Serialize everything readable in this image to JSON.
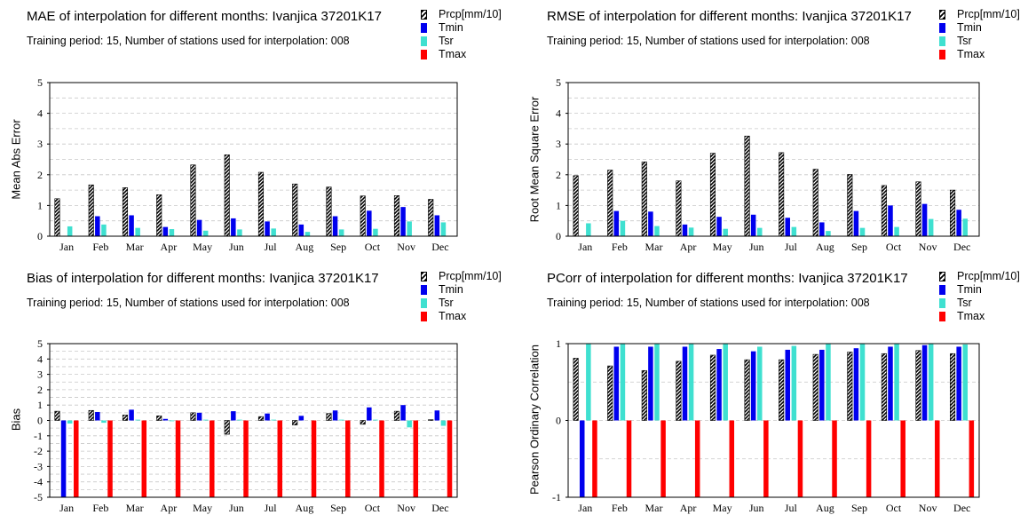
{
  "colors": {
    "Tmin": "#0000ee",
    "Tsr": "#3fe0d0",
    "Tmax": "#ff0000",
    "Prcp": "#000000"
  },
  "legend": [
    "Prcp[mm/10]",
    "Tmin",
    "Tsr",
    "Tmax"
  ],
  "panels": [
    {
      "title": "MAE of interpolation for different months: Ivanjica  37201K17",
      "subtitle": "Training period: 15, Number of stations used for interpolation: 008",
      "ylabel": "Mean Abs Error"
    },
    {
      "title": "RMSE of interpolation for different months: Ivanjica  37201K17",
      "subtitle": "Training period: 15, Number of stations used for interpolation: 008",
      "ylabel": "Root Mean Square Error"
    },
    {
      "title": "Bias of interpolation for different months: Ivanjica  37201K17",
      "subtitle": "Training period: 15, Number of stations used for interpolation: 008",
      "ylabel": "Bias"
    },
    {
      "title": "PCorr of interpolation for different months: Ivanjica  37201K17",
      "subtitle": "Training period: 15, Number of stations used for interpolation: 008",
      "ylabel": "Pearson Ordinary Correlation"
    }
  ],
  "chart_data": [
    {
      "type": "bar",
      "title": "MAE of interpolation for different months: Ivanjica  37201K17",
      "xlabel": "",
      "ylabel": "Mean Abs Error",
      "ylim": [
        0,
        5
      ],
      "grid": true,
      "legend_position": "top-right",
      "yticks": [
        0,
        1,
        2,
        3,
        4,
        5
      ],
      "categories": [
        "Jan",
        "Feb",
        "Mar",
        "Apr",
        "May",
        "Jun",
        "Jul",
        "Aug",
        "Sep",
        "Oct",
        "Nov",
        "Dec"
      ],
      "series": [
        {
          "name": "Prcp[mm/10]",
          "values": [
            1.22,
            1.67,
            1.58,
            1.35,
            2.32,
            2.65,
            2.08,
            1.7,
            1.6,
            1.31,
            1.32,
            1.2
          ]
        },
        {
          "name": "Tmin",
          "values": [
            0.0,
            0.65,
            0.68,
            0.3,
            0.53,
            0.58,
            0.48,
            0.38,
            0.65,
            0.83,
            0.95,
            0.68
          ]
        },
        {
          "name": "Tsr",
          "values": [
            0.32,
            0.38,
            0.27,
            0.23,
            0.18,
            0.22,
            0.25,
            0.14,
            0.22,
            0.24,
            0.48,
            0.45
          ]
        },
        {
          "name": "Tmax",
          "values": [
            0,
            0,
            0,
            0,
            0,
            0,
            0,
            0,
            0,
            0,
            0,
            0
          ]
        }
      ]
    },
    {
      "type": "bar",
      "title": "RMSE of interpolation for different months: Ivanjica  37201K17",
      "xlabel": "",
      "ylabel": "Root Mean Square Error",
      "ylim": [
        0,
        5
      ],
      "grid": true,
      "legend_position": "top-right",
      "yticks": [
        0,
        1,
        2,
        3,
        4,
        5
      ],
      "categories": [
        "Jan",
        "Feb",
        "Mar",
        "Apr",
        "May",
        "Jun",
        "Jul",
        "Aug",
        "Sep",
        "Oct",
        "Nov",
        "Dec"
      ],
      "series": [
        {
          "name": "Prcp[mm/10]",
          "values": [
            1.97,
            2.15,
            2.42,
            1.8,
            2.7,
            3.26,
            2.72,
            2.18,
            2.01,
            1.65,
            1.77,
            1.5
          ]
        },
        {
          "name": "Tmin",
          "values": [
            0.0,
            0.82,
            0.8,
            0.38,
            0.63,
            0.7,
            0.6,
            0.45,
            0.82,
            1.0,
            1.05,
            0.86
          ]
        },
        {
          "name": "Tsr",
          "values": [
            0.42,
            0.5,
            0.33,
            0.28,
            0.24,
            0.27,
            0.3,
            0.17,
            0.27,
            0.3,
            0.56,
            0.57
          ]
        },
        {
          "name": "Tmax",
          "values": [
            0,
            0,
            0,
            0,
            0,
            0,
            0,
            0,
            0,
            0,
            0,
            0
          ]
        }
      ]
    },
    {
      "type": "bar",
      "title": "Bias of interpolation for different months: Ivanjica  37201K17",
      "xlabel": "",
      "ylabel": "Bias",
      "ylim": [
        -5,
        5
      ],
      "grid": true,
      "legend_position": "top-right",
      "yticks": [
        -5,
        -4,
        -3,
        -2,
        -1,
        0,
        1,
        2,
        3,
        4,
        5
      ],
      "categories": [
        "Jan",
        "Feb",
        "Mar",
        "Apr",
        "May",
        "Jun",
        "Jul",
        "Aug",
        "Sep",
        "Oct",
        "Nov",
        "Dec"
      ],
      "series": [
        {
          "name": "Prcp[mm/10]",
          "values": [
            0.6,
            0.65,
            0.35,
            0.3,
            0.5,
            -0.9,
            0.25,
            -0.3,
            0.45,
            -0.25,
            0.6,
            0.05
          ]
        },
        {
          "name": "Tmin",
          "values": [
            -5,
            0.55,
            0.7,
            0.1,
            0.5,
            0.6,
            0.45,
            0.3,
            0.65,
            0.85,
            1.0,
            0.65
          ]
        },
        {
          "name": "Tsr",
          "values": [
            -0.2,
            -0.15,
            0.05,
            -0.05,
            0.05,
            0.05,
            0.05,
            0.0,
            0.05,
            0.05,
            -0.45,
            -0.35
          ]
        },
        {
          "name": "Tmax",
          "values": [
            -5,
            -5,
            -5,
            -5,
            -5,
            -5,
            -5,
            -5,
            -5,
            -5,
            -5,
            -5
          ]
        }
      ]
    },
    {
      "type": "bar",
      "title": "PCorr of interpolation for different months: Ivanjica  37201K17",
      "xlabel": "",
      "ylabel": "Pearson Ordinary Correlation",
      "ylim": [
        -1,
        1
      ],
      "grid": true,
      "legend_position": "top-right",
      "yticks": [
        -1,
        0,
        1
      ],
      "categories": [
        "Jan",
        "Feb",
        "Mar",
        "Apr",
        "May",
        "Jun",
        "Jul",
        "Aug",
        "Sep",
        "Oct",
        "Nov",
        "Dec"
      ],
      "series": [
        {
          "name": "Prcp[mm/10]",
          "values": [
            0.81,
            0.71,
            0.65,
            0.77,
            0.85,
            0.79,
            0.79,
            0.86,
            0.89,
            0.87,
            0.91,
            0.87
          ]
        },
        {
          "name": "Tmin",
          "values": [
            -1.0,
            0.96,
            0.96,
            0.96,
            0.93,
            0.9,
            0.92,
            0.92,
            0.94,
            0.96,
            0.98,
            0.96
          ]
        },
        {
          "name": "Tsr",
          "values": [
            1.0,
            1.0,
            1.0,
            1.0,
            1.0,
            0.96,
            0.97,
            1.0,
            1.0,
            1.0,
            1.0,
            0.99
          ]
        },
        {
          "name": "Tmax",
          "values": [
            -1,
            -1,
            -1,
            -1,
            -1,
            -1,
            -1,
            -1,
            -1,
            -1,
            -1,
            -1
          ]
        }
      ]
    }
  ]
}
